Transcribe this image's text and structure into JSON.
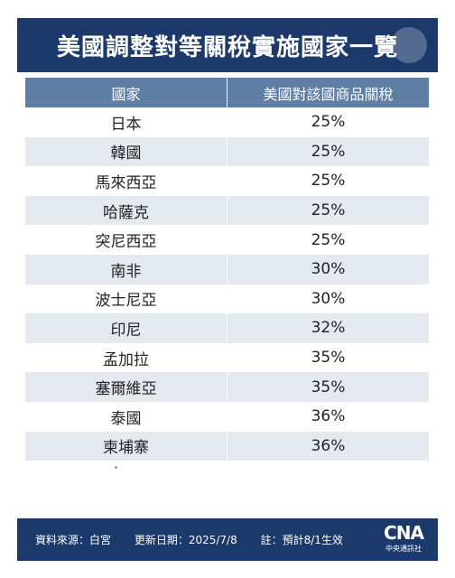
{
  "title": "美國調整對等關稅實施國家一覽",
  "table": {
    "headers": [
      "國家",
      "美國對該國商品關稅"
    ],
    "rows": [
      [
        "日本",
        "25%"
      ],
      [
        "韓國",
        "25%"
      ],
      [
        "馬來西亞",
        "25%"
      ],
      [
        "哈薩克",
        "25%"
      ],
      [
        "突尼西亞",
        "25%"
      ],
      [
        "南非",
        "30%"
      ],
      [
        "波士尼亞",
        "30%"
      ],
      [
        "印尼",
        "32%"
      ],
      [
        "孟加拉",
        "35%"
      ],
      [
        "塞爾維亞",
        "35%"
      ],
      [
        "泰國",
        "36%"
      ],
      [
        "柬埔寨",
        "36%"
      ]
    ]
  },
  "footer": {
    "source": "資料來源：白宮",
    "updated": "更新日期：2025/7/8",
    "note": "註：預計8/1生效",
    "logo_mark": "CNA",
    "logo_name": "中央通訊社"
  },
  "colors": {
    "banner": "#1b3a6b",
    "header_row": "#5f7ea3",
    "stripe": "#e4e8ef"
  }
}
